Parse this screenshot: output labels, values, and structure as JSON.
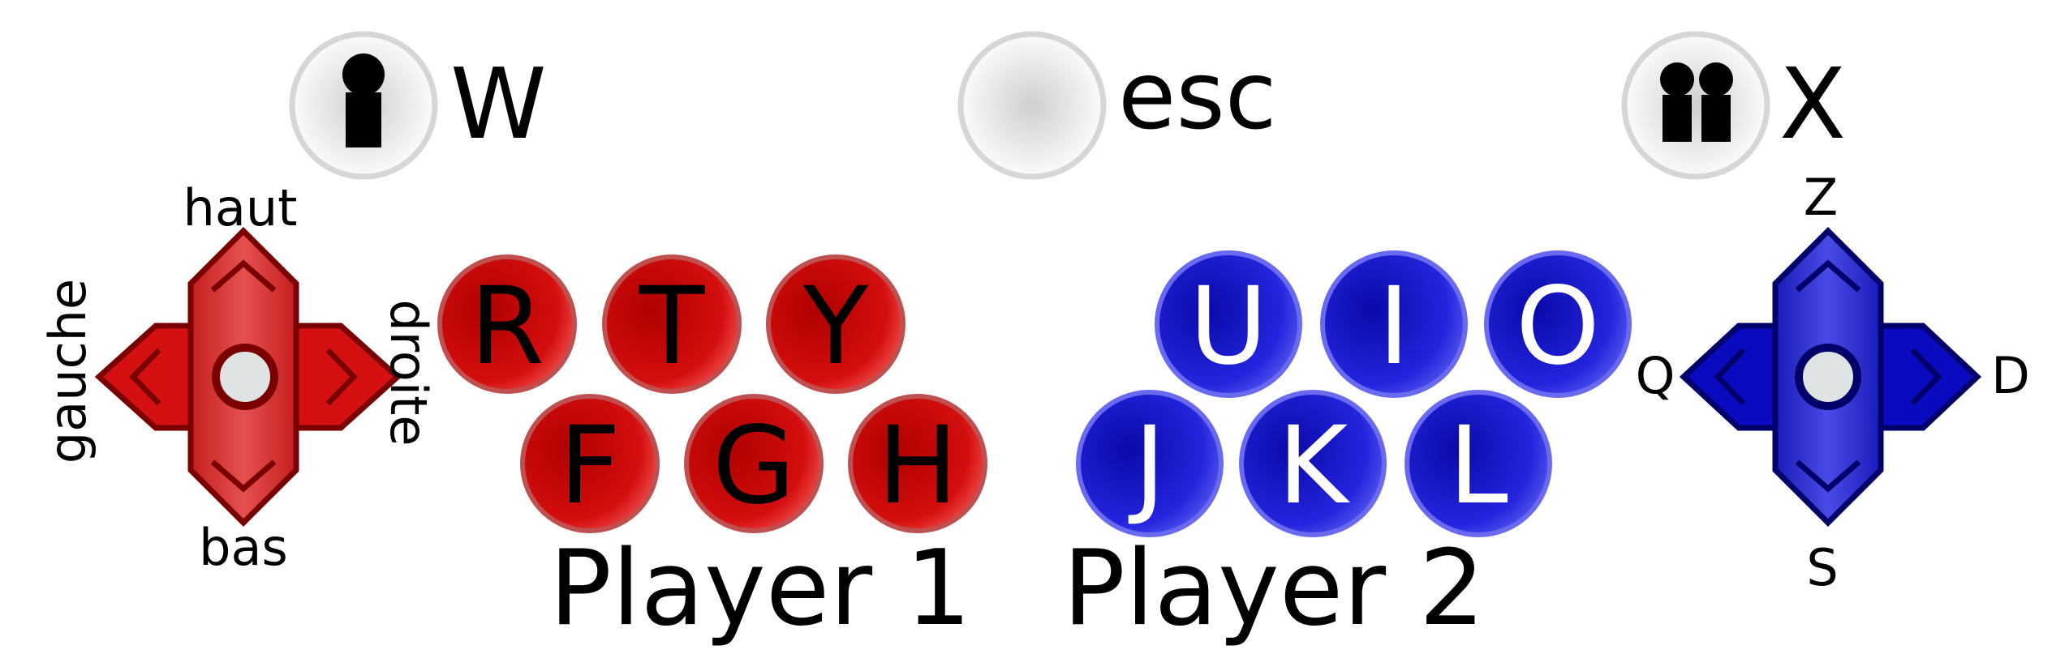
{
  "system_buttons": [
    {
      "key": "W",
      "icon": "one-player-icon"
    },
    {
      "key": "esc",
      "icon": ""
    },
    {
      "key": "X",
      "icon": "two-players-icon"
    }
  ],
  "player1": {
    "label": "Player 1",
    "color": "#cc0000",
    "dpad": {
      "up": "haut",
      "down": "bas",
      "left": "gauche",
      "right": "droite"
    },
    "buttons_top": [
      "R",
      "T",
      "Y"
    ],
    "buttons_bottom": [
      "F",
      "G",
      "H"
    ]
  },
  "player2": {
    "label": "Player 2",
    "color": "#1a14d8",
    "dpad": {
      "up": "Z",
      "down": "S",
      "left": "Q",
      "right": "D"
    },
    "buttons_top": [
      "U",
      "I",
      "O"
    ],
    "buttons_bottom": [
      "J",
      "K",
      "L"
    ]
  }
}
